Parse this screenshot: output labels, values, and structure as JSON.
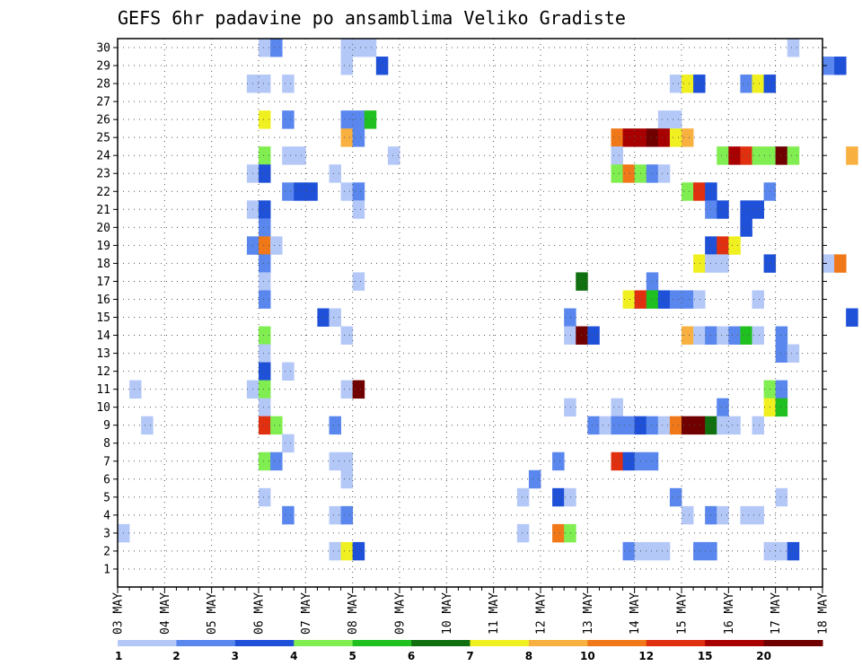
{
  "chart_data": {
    "type": "heatmap",
    "title": "GEFS 6hr padavine po ansamblima Veliko Gradiste",
    "x_tick_labels": [
      "03 MAY",
      "04 MAY",
      "05 MAY",
      "06 MAY",
      "07 MAY",
      "08 MAY",
      "09 MAY",
      "10 MAY",
      "11 MAY",
      "12 MAY",
      "13 MAY",
      "14 MAY",
      "15 MAY",
      "16 MAY",
      "17 MAY",
      "18 MAY"
    ],
    "x_step_hours": 6,
    "y_range": [
      1,
      30
    ],
    "grid": true,
    "colorbar": {
      "placement": "bottom",
      "tick_labels": [
        "1",
        "2",
        "3",
        "4",
        "5",
        "6",
        "7",
        "8",
        "10",
        "12",
        "15",
        "20"
      ],
      "colors": [
        "#b4c8f8",
        "#5a87ee",
        "#1e50d8",
        "#80ee50",
        "#20c020",
        "#107010",
        "#f0f020",
        "#f8b040",
        "#f07818",
        "#e03010",
        "#a80000",
        "#700000"
      ]
    },
    "members": [
      {
        "y": 30,
        "cells": [
          [
            12,
            0
          ],
          [
            13,
            1
          ],
          [
            19,
            0
          ],
          [
            20,
            0
          ],
          [
            21,
            0
          ],
          [
            57,
            0
          ]
        ]
      },
      {
        "y": 29,
        "cells": [
          [
            19,
            0
          ],
          [
            22,
            2
          ],
          [
            60,
            1
          ],
          [
            61,
            2
          ]
        ]
      },
      {
        "y": 28,
        "cells": [
          [
            11,
            0
          ],
          [
            12,
            0
          ],
          [
            14,
            0
          ],
          [
            47,
            0
          ],
          [
            48,
            6
          ],
          [
            49,
            2
          ],
          [
            53,
            1
          ],
          [
            54,
            6
          ],
          [
            55,
            2
          ]
        ]
      },
      {
        "y": 26,
        "cells": [
          [
            12,
            6
          ],
          [
            14,
            1
          ],
          [
            19,
            1
          ],
          [
            20,
            1
          ],
          [
            21,
            4
          ],
          [
            46,
            0
          ],
          [
            47,
            0
          ]
        ]
      },
      {
        "y": 25,
        "cells": [
          [
            19,
            7
          ],
          [
            20,
            1
          ],
          [
            42,
            8
          ],
          [
            43,
            10
          ],
          [
            44,
            10
          ],
          [
            45,
            11
          ],
          [
            46,
            10
          ],
          [
            47,
            6
          ],
          [
            48,
            7
          ]
        ]
      },
      {
        "y": 24,
        "cells": [
          [
            12,
            3
          ],
          [
            14,
            0
          ],
          [
            15,
            0
          ],
          [
            23,
            0
          ],
          [
            42,
            0
          ],
          [
            51,
            3
          ],
          [
            52,
            10
          ],
          [
            53,
            9
          ],
          [
            54,
            3
          ],
          [
            55,
            3
          ],
          [
            56,
            11
          ],
          [
            57,
            3
          ],
          [
            62,
            7
          ]
        ]
      },
      {
        "y": 23,
        "cells": [
          [
            11,
            0
          ],
          [
            12,
            2
          ],
          [
            18,
            0
          ],
          [
            42,
            3
          ],
          [
            43,
            8
          ],
          [
            44,
            3
          ],
          [
            45,
            1
          ],
          [
            46,
            0
          ]
        ]
      },
      {
        "y": 22,
        "cells": [
          [
            14,
            1
          ],
          [
            15,
            2
          ],
          [
            16,
            2
          ],
          [
            19,
            0
          ],
          [
            20,
            1
          ],
          [
            48,
            3
          ],
          [
            49,
            9
          ],
          [
            50,
            2
          ],
          [
            55,
            1
          ]
        ]
      },
      {
        "y": 21,
        "cells": [
          [
            11,
            0
          ],
          [
            12,
            2
          ],
          [
            20,
            0
          ],
          [
            50,
            1
          ],
          [
            51,
            2
          ],
          [
            53,
            2
          ],
          [
            54,
            2
          ]
        ]
      },
      {
        "y": 20,
        "cells": [
          [
            12,
            1
          ],
          [
            53,
            2
          ]
        ]
      },
      {
        "y": 19,
        "cells": [
          [
            11,
            1
          ],
          [
            12,
            8
          ],
          [
            13,
            0
          ],
          [
            50,
            2
          ],
          [
            51,
            9
          ],
          [
            52,
            6
          ]
        ]
      },
      {
        "y": 18,
        "cells": [
          [
            12,
            1
          ],
          [
            49,
            6
          ],
          [
            50,
            0
          ],
          [
            51,
            0
          ],
          [
            55,
            2
          ],
          [
            60,
            0
          ],
          [
            61,
            8
          ]
        ]
      },
      {
        "y": 17,
        "cells": [
          [
            12,
            0
          ],
          [
            20,
            0
          ],
          [
            39,
            5
          ],
          [
            45,
            1
          ]
        ]
      },
      {
        "y": 16,
        "cells": [
          [
            12,
            1
          ],
          [
            43,
            6
          ],
          [
            44,
            9
          ],
          [
            45,
            4
          ],
          [
            46,
            2
          ],
          [
            47,
            1
          ],
          [
            48,
            1
          ],
          [
            49,
            0
          ],
          [
            54,
            0
          ]
        ]
      },
      {
        "y": 15,
        "cells": [
          [
            17,
            2
          ],
          [
            18,
            0
          ],
          [
            38,
            1
          ],
          [
            62,
            2
          ]
        ]
      },
      {
        "y": 14,
        "cells": [
          [
            12,
            3
          ],
          [
            19,
            0
          ],
          [
            38,
            0
          ],
          [
            39,
            11
          ],
          [
            40,
            2
          ],
          [
            48,
            7
          ],
          [
            49,
            0
          ],
          [
            50,
            1
          ],
          [
            51,
            0
          ],
          [
            52,
            1
          ],
          [
            53,
            4
          ],
          [
            54,
            0
          ],
          [
            56,
            1
          ]
        ]
      },
      {
        "y": 13,
        "cells": [
          [
            12,
            0
          ],
          [
            56,
            1
          ],
          [
            57,
            0
          ]
        ]
      },
      {
        "y": 12,
        "cells": [
          [
            12,
            2
          ],
          [
            14,
            0
          ]
        ]
      },
      {
        "y": 11,
        "cells": [
          [
            1,
            0
          ],
          [
            11,
            0
          ],
          [
            12,
            3
          ],
          [
            19,
            0
          ],
          [
            20,
            11
          ],
          [
            55,
            3
          ],
          [
            56,
            1
          ]
        ]
      },
      {
        "y": 10,
        "cells": [
          [
            12,
            0
          ],
          [
            38,
            0
          ],
          [
            42,
            0
          ],
          [
            51,
            1
          ],
          [
            55,
            6
          ],
          [
            56,
            4
          ]
        ]
      },
      {
        "y": 9,
        "cells": [
          [
            2,
            0
          ],
          [
            12,
            9
          ],
          [
            13,
            3
          ],
          [
            18,
            1
          ],
          [
            40,
            1
          ],
          [
            41,
            0
          ],
          [
            42,
            1
          ],
          [
            43,
            1
          ],
          [
            44,
            2
          ],
          [
            45,
            1
          ],
          [
            46,
            0
          ],
          [
            47,
            8
          ],
          [
            48,
            11
          ],
          [
            49,
            11
          ],
          [
            50,
            5
          ],
          [
            51,
            0
          ],
          [
            52,
            0
          ],
          [
            54,
            0
          ]
        ]
      },
      {
        "y": 8,
        "cells": [
          [
            14,
            0
          ]
        ]
      },
      {
        "y": 7,
        "cells": [
          [
            12,
            3
          ],
          [
            13,
            1
          ],
          [
            18,
            0
          ],
          [
            19,
            0
          ],
          [
            37,
            1
          ],
          [
            42,
            9
          ],
          [
            43,
            2
          ],
          [
            44,
            1
          ],
          [
            45,
            1
          ]
        ]
      },
      {
        "y": 6,
        "cells": [
          [
            19,
            0
          ],
          [
            35,
            1
          ]
        ]
      },
      {
        "y": 5,
        "cells": [
          [
            12,
            0
          ],
          [
            34,
            0
          ],
          [
            37,
            2
          ],
          [
            38,
            0
          ],
          [
            47,
            1
          ],
          [
            56,
            0
          ]
        ]
      },
      {
        "y": 4,
        "cells": [
          [
            14,
            1
          ],
          [
            18,
            0
          ],
          [
            19,
            1
          ],
          [
            48,
            0
          ],
          [
            50,
            1
          ],
          [
            51,
            0
          ],
          [
            53,
            0
          ],
          [
            54,
            0
          ]
        ]
      },
      {
        "y": 3,
        "cells": [
          [
            0,
            0
          ],
          [
            34,
            0
          ],
          [
            37,
            8
          ],
          [
            38,
            3
          ]
        ]
      },
      {
        "y": 2,
        "cells": [
          [
            18,
            0
          ],
          [
            19,
            6
          ],
          [
            20,
            2
          ],
          [
            43,
            1
          ],
          [
            44,
            0
          ],
          [
            45,
            0
          ],
          [
            46,
            0
          ],
          [
            49,
            1
          ],
          [
            50,
            1
          ],
          [
            55,
            0
          ],
          [
            56,
            0
          ],
          [
            57,
            2
          ]
        ]
      }
    ]
  }
}
